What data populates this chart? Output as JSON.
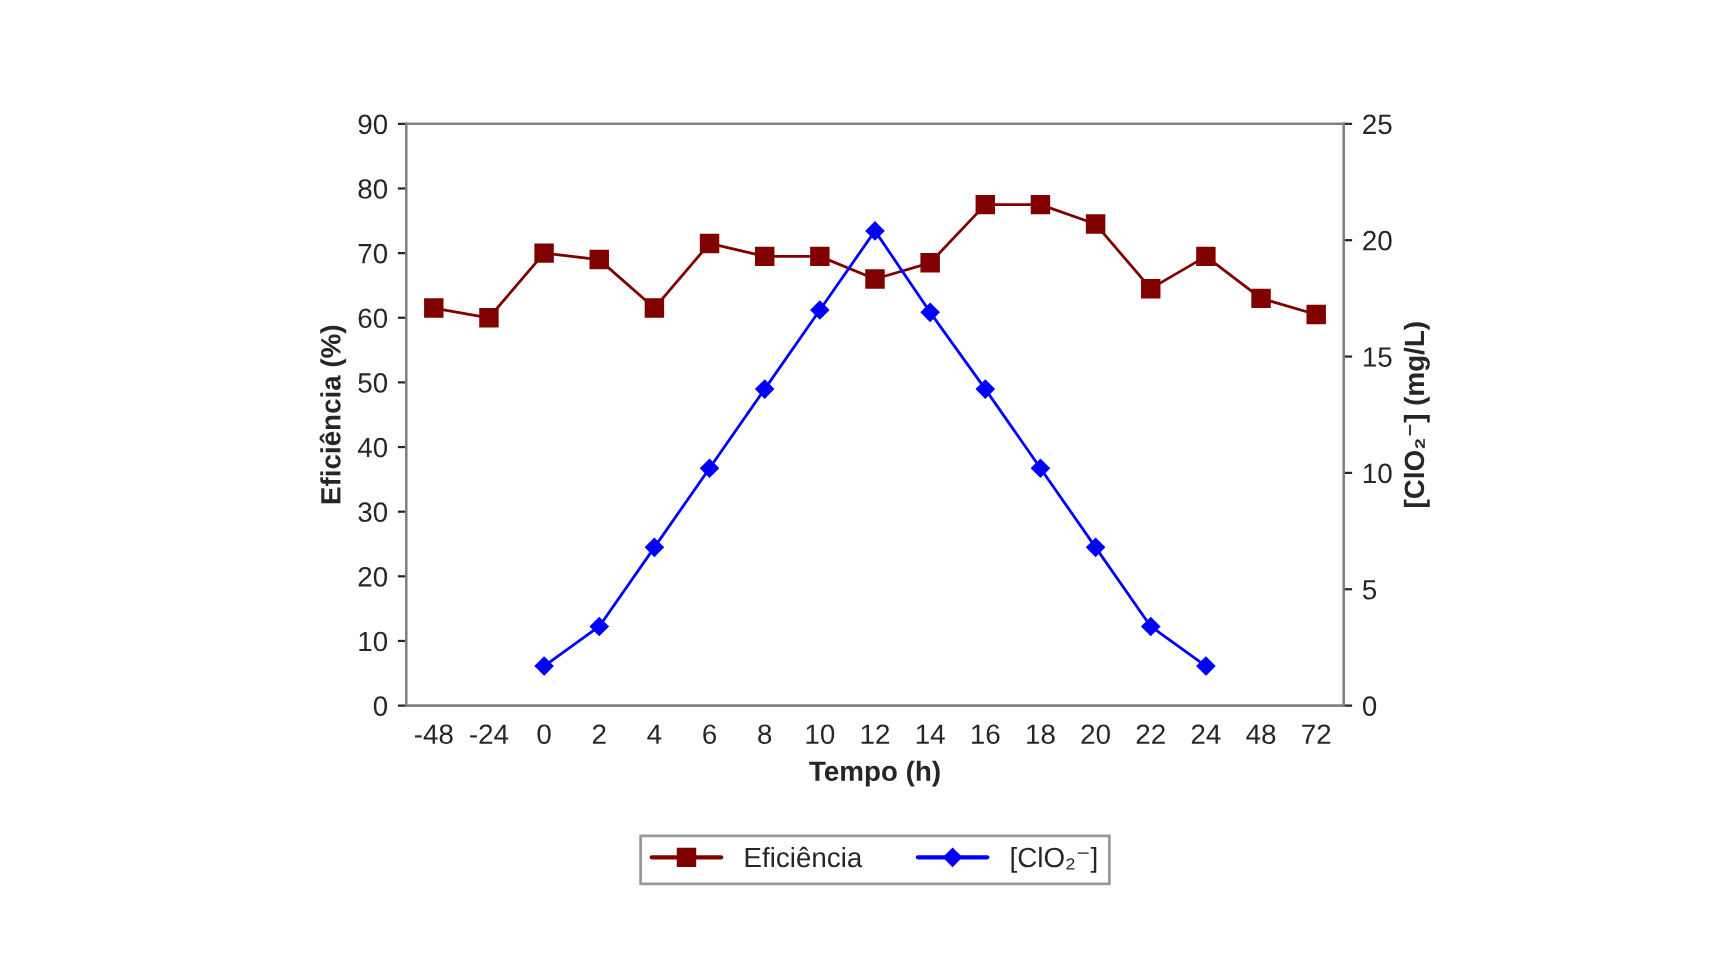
{
  "chart_data": {
    "type": "line",
    "xlabel": "Tempo (h)",
    "ylabel": "Eficiência (%)",
    "y2label": "[ClO₂⁻] (mg/L)",
    "categories": [
      "-48",
      "-24",
      "0",
      "2",
      "4",
      "6",
      "8",
      "10",
      "12",
      "14",
      "16",
      "18",
      "20",
      "22",
      "24",
      "48",
      "72"
    ],
    "series": [
      {
        "name": "Eficiência",
        "color": "#800000",
        "marker": "square",
        "values": [
          61.5,
          60,
          70,
          69,
          61.5,
          71.5,
          69.5,
          69.5,
          66,
          68.5,
          77.5,
          77.5,
          74.5,
          64.5,
          69.5,
          63,
          60.5
        ]
      },
      {
        "name": "[ClO₂⁻]",
        "color": "#0000ff",
        "marker": "diamond",
        "axis": "y2",
        "values": [
          null,
          null,
          1.7,
          3.4,
          6.8,
          10.2,
          13.6,
          17,
          20.4,
          16.9,
          13.6,
          10.2,
          6.8,
          3.4,
          1.7,
          null,
          null
        ]
      }
    ],
    "ylim": [
      0,
      90
    ],
    "yticks": [
      0,
      10,
      20,
      30,
      40,
      50,
      60,
      70,
      80,
      90
    ],
    "y2lim": [
      0,
      25
    ],
    "y2ticks": [
      0,
      5,
      10,
      15,
      20,
      25
    ],
    "grid": false,
    "legend": "bottom",
    "line_style": "solid"
  }
}
